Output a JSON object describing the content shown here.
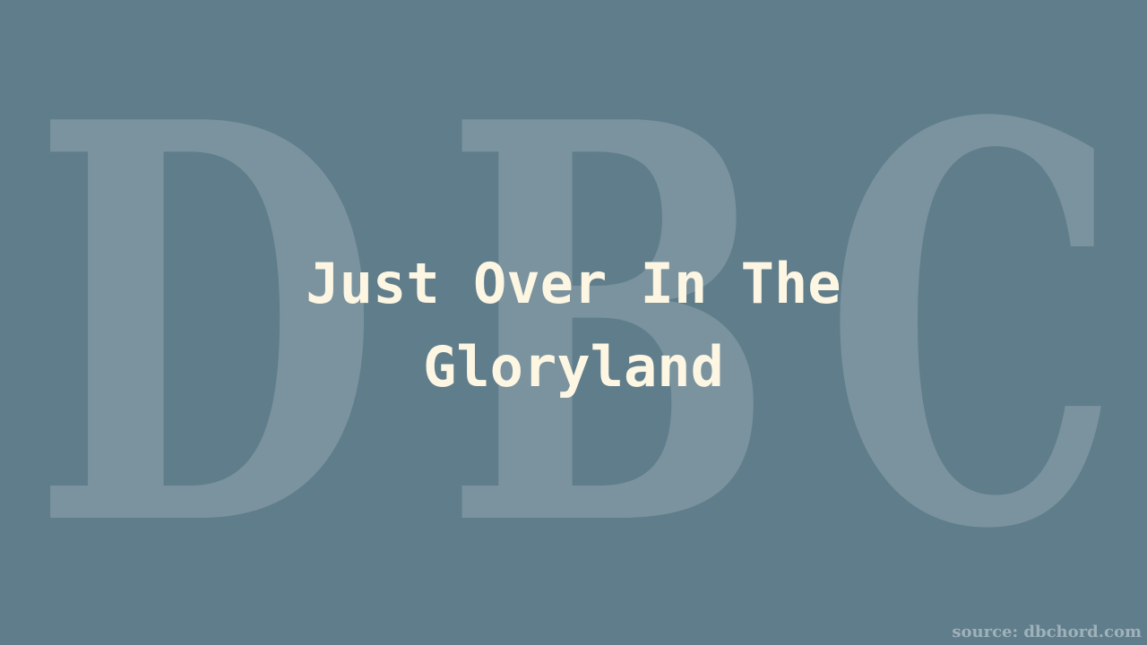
{
  "watermark": {
    "letters": [
      "D",
      "B",
      "C"
    ]
  },
  "title": {
    "line1": "Just Over In The",
    "line2": "Gloryland"
  },
  "footer": {
    "source": "source: dbchord.com"
  },
  "colors": {
    "background": "#607d8b",
    "title_text": "#fdf6e3",
    "watermark": "#ffffff"
  }
}
